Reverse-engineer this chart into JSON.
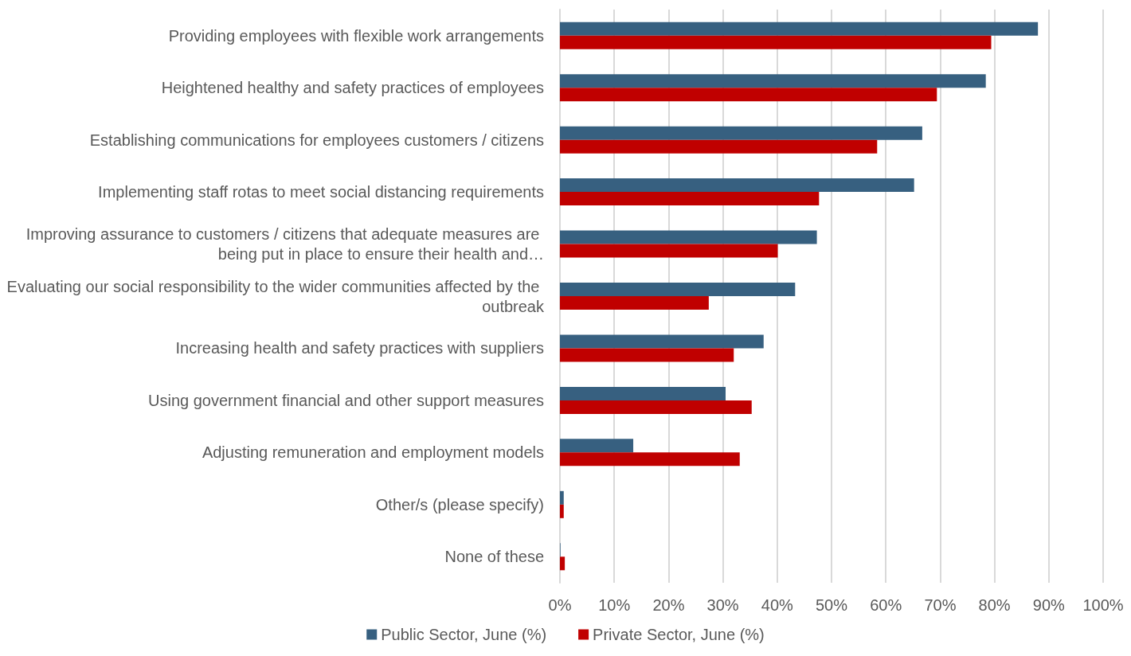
{
  "chart_data": {
    "type": "bar",
    "orientation": "horizontal",
    "categories": [
      "Providing employees with flexible work arrangements",
      "Heightened healthy and safety practices of employees",
      "Establishing communications for employees customers / citizens",
      "Implementing staff rotas to meet social distancing requirements",
      "Improving assurance to customers / citizens that adequate measures are being put in place to ensure their health and…",
      "Evaluating our social responsibility to the wider communities affected by the outbreak",
      "Increasing health and safety practices with suppliers",
      "Using government financial and other support measures",
      "Adjusting remuneration and employment models",
      "Other/s (please specify)",
      "None of these"
    ],
    "series": [
      {
        "name": "Public Sector, June (%)",
        "color": "#376080",
        "values": [
          88.0,
          78.4,
          66.7,
          65.2,
          47.3,
          43.3,
          37.5,
          30.5,
          13.5,
          0.7,
          0.1
        ]
      },
      {
        "name": "Private Sector, June (%)",
        "color": "#c00000",
        "values": [
          79.4,
          69.4,
          58.4,
          47.7,
          40.1,
          27.4,
          32.0,
          35.3,
          33.1,
          0.7,
          0.9
        ]
      }
    ],
    "xlim": [
      0,
      100
    ],
    "xticks": [
      {
        "value": 0,
        "label": "0%"
      },
      {
        "value": 10,
        "label": "10%"
      },
      {
        "value": 20,
        "label": "20%"
      },
      {
        "value": 30,
        "label": "30%"
      },
      {
        "value": 40,
        "label": "40%"
      },
      {
        "value": 50,
        "label": "50%"
      },
      {
        "value": 60,
        "label": "60%"
      },
      {
        "value": 70,
        "label": "70%"
      },
      {
        "value": 80,
        "label": "80%"
      },
      {
        "value": 90,
        "label": "90%"
      },
      {
        "value": 100,
        "label": "100%"
      }
    ],
    "grid": "x",
    "legend": "bottom"
  }
}
